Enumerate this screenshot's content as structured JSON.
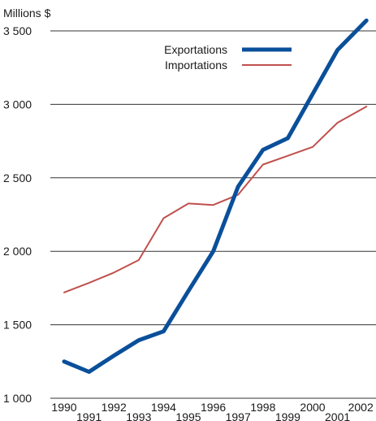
{
  "chart_data": {
    "type": "line",
    "y_unit_label": "Millions $",
    "x": [
      1990,
      1991,
      1992,
      1993,
      1994,
      1995,
      1996,
      1997,
      1998,
      1999,
      2000,
      2001,
      2002
    ],
    "x_tick_labels": [
      "1990",
      "1991",
      "1992",
      "1993",
      "1994",
      "1995",
      "1996",
      "1997",
      "1998",
      "1999",
      "2000",
      "2001",
      "2002"
    ],
    "series": [
      {
        "name": "Exportations",
        "color": "#0a4f9a",
        "style": "thick",
        "values": [
          1250,
          1180,
          1290,
          1395,
          1455,
          1730,
          2000,
          2440,
          2690,
          2770,
          3070,
          3370,
          3570
        ]
      },
      {
        "name": "Importations",
        "color": "#c0504d",
        "style": "thin",
        "values": [
          1720,
          1785,
          1855,
          1940,
          2225,
          2325,
          2315,
          2385,
          2590,
          2650,
          2710,
          2875,
          2985
        ]
      }
    ],
    "y_ticks": [
      1000,
      1500,
      2000,
      2500,
      3000,
      3500
    ],
    "y_tick_labels": [
      "1 000",
      "1 500",
      "2 000",
      "2 500",
      "3 000",
      "3 500"
    ],
    "ylim": [
      1000,
      3600
    ],
    "grid": "horizontal",
    "legend_position": "top-center"
  }
}
